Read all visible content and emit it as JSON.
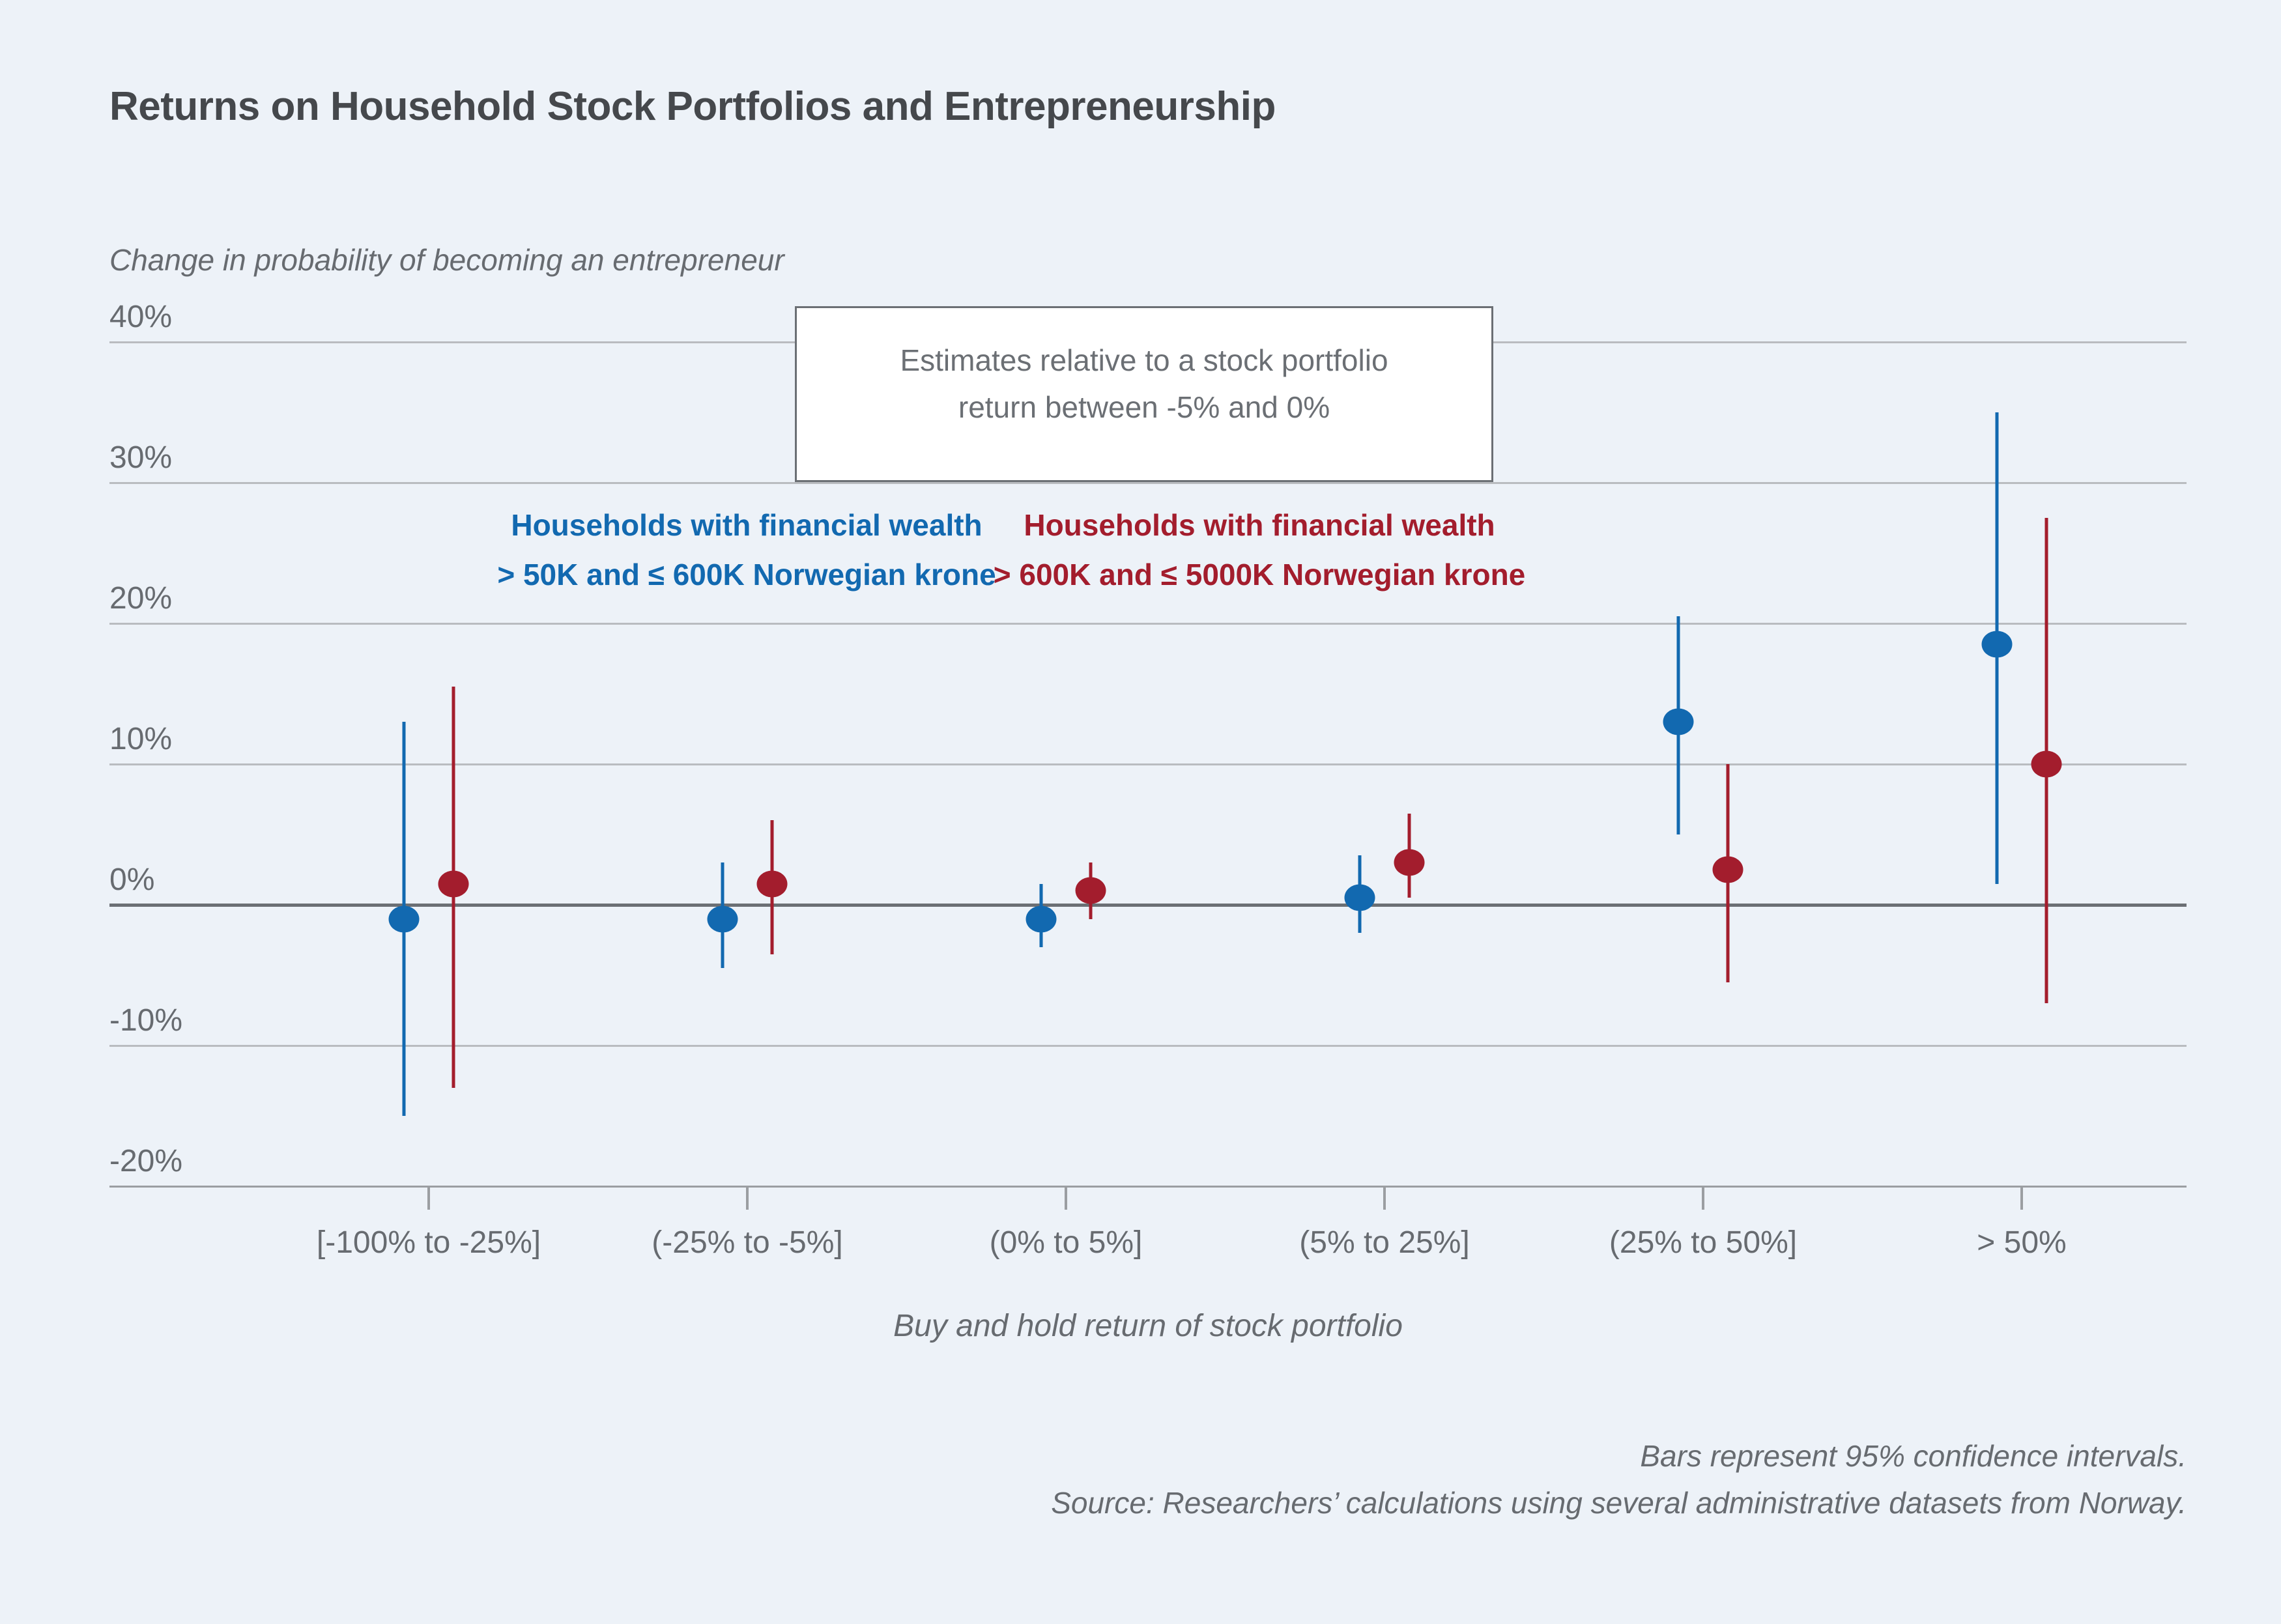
{
  "header": {
    "title": "Returns on Household Stock Portfolios and Entrepreneurship"
  },
  "chart": {
    "y_axis_title": "Change in probability of becoming an entrepreneur",
    "x_axis_title": "Buy and hold return of stock portfolio",
    "annotation": {
      "line1": "Estimates relative to a stock portfolio",
      "line2": "return between -5% and 0%"
    },
    "legend_blue": {
      "line1": "Households with financial wealth",
      "line2": "> 50K and ≤ 600K Norwegian krone"
    },
    "legend_red": {
      "line1": "Households with financial wealth",
      "line2": "> 600K and ≤ 5000K Norwegian krone"
    },
    "footnote_line1": "Bars represent 95% confidence intervals.",
    "footnote_line2": "Source: Researchers’ calculations using several administrative datasets from Norway."
  },
  "colors": {
    "background": "#edf2f8",
    "blue": "#1269b0",
    "red": "#a31d2d",
    "grid": "#b9bcc0",
    "zero_line": "#6b6f74",
    "axis_line": "#9b9ea2",
    "text_gray": "#676b70",
    "title_text": "#45484c"
  },
  "chart_data": {
    "type": "scatter",
    "subtype": "point-estimates-with-95%-confidence-intervals",
    "title": "Returns on Household Stock Portfolios and Entrepreneurship",
    "xlabel": "Buy and hold return of stock portfolio",
    "ylabel": "Change in probability of becoming an entrepreneur",
    "baseline_note": "Estimates relative to a stock portfolio return between -5% and 0%",
    "grid": true,
    "legend_position": "inside-top",
    "categories": [
      "[-100% to -25%]",
      "(-25% to -5%]",
      "(0% to 5%]",
      "(5% to 25%]",
      "(25% to 50%]",
      "> 50%"
    ],
    "y_ticks_percent": [
      40,
      30,
      20,
      10,
      0,
      -10,
      -20
    ],
    "y_tick_labels": [
      "40%",
      "30%",
      "20%",
      "10%",
      "0%",
      "-10%",
      "-20%"
    ],
    "ylim": [
      -23,
      42
    ],
    "series": [
      {
        "name": "Households with financial wealth > 50K and ≤ 600K Norwegian krone",
        "color": "#1269b0",
        "estimates": [
          -1,
          -1,
          -1,
          0.5,
          13,
          18.5
        ],
        "ci_low": [
          -15,
          -4.5,
          -3,
          -2,
          5,
          1.5
        ],
        "ci_high": [
          13,
          3,
          1.5,
          3.5,
          20.5,
          35
        ]
      },
      {
        "name": "Households with financial wealth > 600K and ≤ 5000K Norwegian krone",
        "color": "#a31d2d",
        "estimates": [
          1.5,
          1.5,
          1,
          3,
          2.5,
          10
        ],
        "ci_low": [
          -13,
          -3.5,
          -1,
          0.5,
          -5.5,
          -7
        ],
        "ci_high": [
          15.5,
          6,
          3,
          6.5,
          10,
          27.5
        ]
      }
    ]
  }
}
